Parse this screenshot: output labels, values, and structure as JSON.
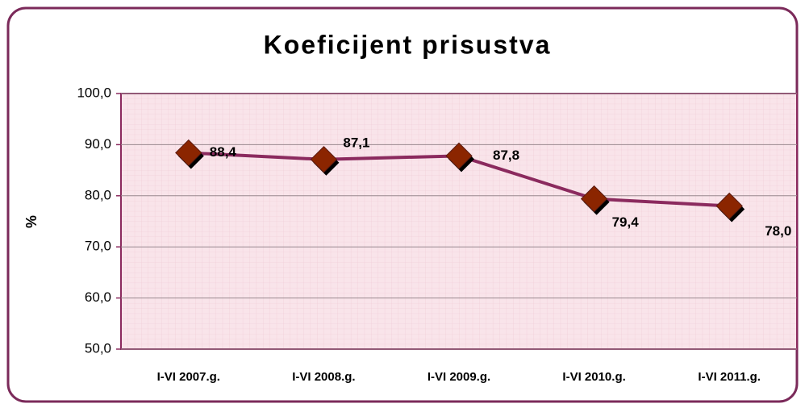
{
  "chart_data": {
    "type": "line",
    "title": "Koeficijent prisustva",
    "y_label": "%",
    "categories": [
      "I-VI 2007.g.",
      "I-VI 2008.g.",
      "I-VI 2009.g.",
      "I-VI 2010.g.",
      "I-VI 2011.g."
    ],
    "series": [
      {
        "name": "Koeficijent prisustva",
        "color": "#8b2a5e",
        "marker_color": "#8b2500",
        "values": [
          88.4,
          87.1,
          87.8,
          79.4,
          78.0
        ],
        "value_labels": [
          "88,4",
          "87,1",
          "87,8",
          "79,4",
          "78,0"
        ]
      }
    ],
    "ylim": [
      50,
      100
    ],
    "yticks": [
      {
        "value": 50,
        "label": "50,0"
      },
      {
        "value": 60,
        "label": "60,0"
      },
      {
        "value": 70,
        "label": "70,0"
      },
      {
        "value": 80,
        "label": "80,0"
      },
      {
        "value": 90,
        "label": "90,0"
      },
      {
        "value": 100,
        "label": "100,0"
      }
    ],
    "grid": true
  }
}
